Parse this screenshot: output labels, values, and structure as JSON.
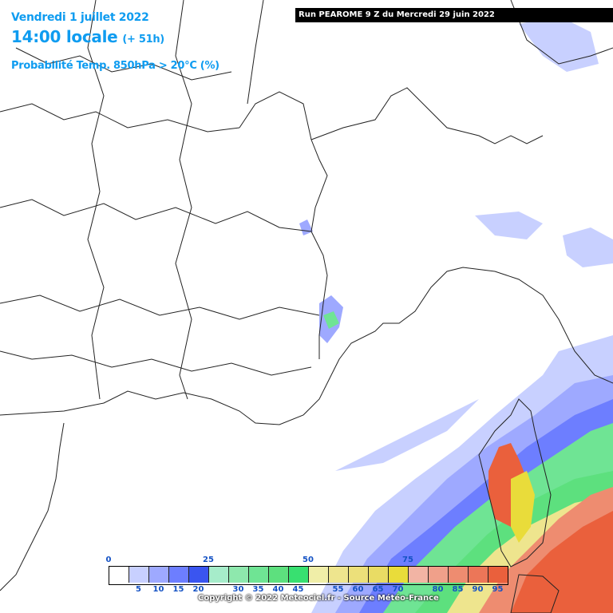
{
  "header": {
    "date": "Vendredi 1 juillet 2022",
    "time": "14:00 locale",
    "lead": "(+ 51h)",
    "product": "Probabilité Temp. 850hPa > 20°C (%)",
    "run": "Run PEAROME 9 Z du Mercredi 29 juin 2022"
  },
  "legend": {
    "colors": [
      "#ffffff",
      "#c8d0ff",
      "#9ea9ff",
      "#6d7eff",
      "#3a55f0",
      "#a6ecca",
      "#8ee8ad",
      "#6fe494",
      "#5de07e",
      "#38e070",
      "#f0eea8",
      "#eee58e",
      "#ece07a",
      "#e9dc64",
      "#e9dc3a",
      "#f2b4a4",
      "#f0a08a",
      "#ee8c70",
      "#ec7658",
      "#ea603c"
    ],
    "top_labels": [
      {
        "text": "0",
        "index": 0
      },
      {
        "text": "25",
        "index": 5
      },
      {
        "text": "50",
        "index": 10
      },
      {
        "text": "75",
        "index": 15
      }
    ],
    "bottom_labels": [
      {
        "text": "5",
        "index": 1
      },
      {
        "text": "10",
        "index": 2
      },
      {
        "text": "15",
        "index": 3
      },
      {
        "text": "20",
        "index": 4
      },
      {
        "text": "30",
        "index": 6
      },
      {
        "text": "35",
        "index": 7
      },
      {
        "text": "40",
        "index": 8
      },
      {
        "text": "45",
        "index": 9
      },
      {
        "text": "55",
        "index": 11
      },
      {
        "text": "60",
        "index": 12
      },
      {
        "text": "65",
        "index": 13
      },
      {
        "text": "70",
        "index": 14
      },
      {
        "text": "80",
        "index": 16
      },
      {
        "text": "85",
        "index": 17
      },
      {
        "text": "90",
        "index": 18
      },
      {
        "text": "95",
        "index": 19
      }
    ]
  },
  "copyright": "Copyright © 2022 Meteociel.fr - Source Météo-France"
}
